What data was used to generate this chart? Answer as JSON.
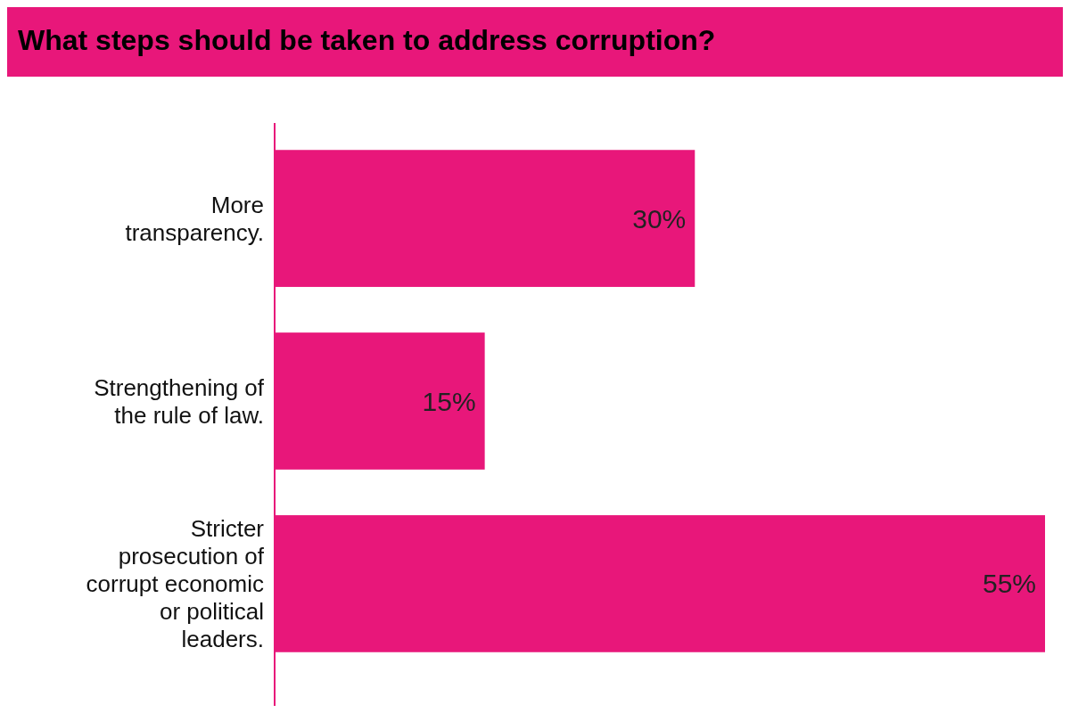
{
  "chart_data": {
    "type": "bar",
    "orientation": "horizontal",
    "title": "What steps should be taken to address corruption?",
    "categories": [
      "More transparency.",
      "Strengthening of the rule of law.",
      "Stricter prosecution of corrupt economic or political leaders."
    ],
    "values": [
      30,
      15,
      55
    ],
    "value_labels": [
      "30%",
      "15%",
      "55%"
    ],
    "color": "#e8177a"
  }
}
